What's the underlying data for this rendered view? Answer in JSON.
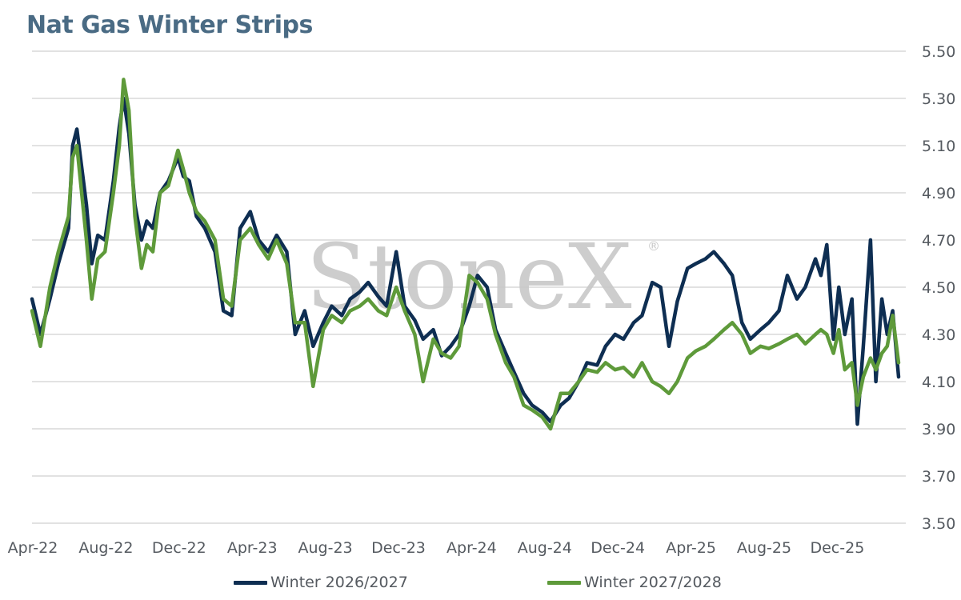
{
  "chart_data": {
    "type": "line",
    "title": "Nat Gas Winter Strips",
    "x_tick_labels": [
      "Apr-22",
      "Aug-22",
      "Dec-22",
      "Apr-23",
      "Aug-23",
      "Dec-23",
      "Apr-24",
      "Aug-24",
      "Dec-24",
      "Apr-25",
      "Aug-25",
      "Dec-25"
    ],
    "y_tick_labels": [
      "3.50",
      "3.70",
      "3.90",
      "4.10",
      "4.30",
      "4.50",
      "4.70",
      "4.90",
      "5.10",
      "5.30",
      "5.50"
    ],
    "ylim": [
      3.5,
      5.5
    ],
    "xlim": [
      "2022-04",
      "2026-04"
    ],
    "grid": true,
    "legend_position": "bottom",
    "watermark": "StoneX",
    "series": [
      {
        "name": "Winter 2026/2027",
        "color": "#0e2e52",
        "x": [
          "2022-04-01",
          "2022-04-15",
          "2022-05-01",
          "2022-05-15",
          "2022-06-01",
          "2022-06-08",
          "2022-06-15",
          "2022-07-01",
          "2022-07-10",
          "2022-07-20",
          "2022-08-01",
          "2022-08-15",
          "2022-08-25",
          "2022-09-01",
          "2022-09-10",
          "2022-09-20",
          "2022-10-01",
          "2022-10-10",
          "2022-10-20",
          "2022-11-01",
          "2022-11-15",
          "2022-12-01",
          "2022-12-10",
          "2022-12-20",
          "2023-01-01",
          "2023-01-15",
          "2023-02-01",
          "2023-02-15",
          "2023-03-01",
          "2023-03-15",
          "2023-04-01",
          "2023-04-15",
          "2023-05-01",
          "2023-05-15",
          "2023-06-01",
          "2023-06-15",
          "2023-07-01",
          "2023-07-15",
          "2023-08-01",
          "2023-08-15",
          "2023-09-01",
          "2023-09-15",
          "2023-10-01",
          "2023-10-15",
          "2023-11-01",
          "2023-11-15",
          "2023-12-01",
          "2023-12-15",
          "2024-01-01",
          "2024-01-15",
          "2024-02-01",
          "2024-02-15",
          "2024-03-01",
          "2024-03-15",
          "2024-04-01",
          "2024-04-15",
          "2024-05-01",
          "2024-05-15",
          "2024-06-01",
          "2024-06-15",
          "2024-07-01",
          "2024-07-15",
          "2024-08-01",
          "2024-08-15",
          "2024-09-01",
          "2024-09-15",
          "2024-10-01",
          "2024-10-15",
          "2024-11-01",
          "2024-11-15",
          "2024-12-01",
          "2024-12-15",
          "2025-01-01",
          "2025-01-15",
          "2025-02-01",
          "2025-02-15",
          "2025-03-01",
          "2025-03-15",
          "2025-04-01",
          "2025-04-15",
          "2025-05-01",
          "2025-05-15",
          "2025-06-01",
          "2025-06-15",
          "2025-07-01",
          "2025-07-15",
          "2025-08-01",
          "2025-08-15",
          "2025-09-01",
          "2025-09-15",
          "2025-10-01",
          "2025-10-15",
          "2025-11-01",
          "2025-11-10",
          "2025-11-20",
          "2025-12-01",
          "2025-12-10",
          "2025-12-20",
          "2026-01-01",
          "2026-01-10",
          "2026-01-20",
          "2026-02-01",
          "2026-02-10",
          "2026-02-20",
          "2026-03-01",
          "2026-03-10",
          "2026-03-20"
        ],
        "values": [
          4.45,
          4.3,
          4.45,
          4.6,
          4.75,
          5.1,
          5.17,
          4.85,
          4.6,
          4.72,
          4.7,
          4.95,
          5.18,
          5.3,
          5.15,
          4.85,
          4.7,
          4.78,
          4.75,
          4.9,
          4.95,
          5.05,
          4.97,
          4.95,
          4.8,
          4.75,
          4.65,
          4.4,
          4.38,
          4.75,
          4.82,
          4.7,
          4.65,
          4.72,
          4.65,
          4.3,
          4.4,
          4.25,
          4.35,
          4.42,
          4.38,
          4.45,
          4.48,
          4.52,
          4.46,
          4.42,
          4.65,
          4.42,
          4.36,
          4.28,
          4.32,
          4.21,
          4.25,
          4.3,
          4.42,
          4.55,
          4.5,
          4.32,
          4.22,
          4.14,
          4.05,
          4.0,
          3.97,
          3.93,
          4.0,
          4.03,
          4.1,
          4.18,
          4.17,
          4.25,
          4.3,
          4.28,
          4.35,
          4.38,
          4.52,
          4.5,
          4.25,
          4.44,
          4.58,
          4.6,
          4.62,
          4.65,
          4.6,
          4.55,
          4.35,
          4.28,
          4.32,
          4.35,
          4.4,
          4.55,
          4.45,
          4.5,
          4.62,
          4.55,
          4.68,
          4.28,
          4.5,
          4.3,
          4.45,
          3.92,
          4.25,
          4.7,
          4.1,
          4.45,
          4.3,
          4.4,
          4.12
        ]
      },
      {
        "name": "Winter 2027/2028",
        "color": "#5e9a3a",
        "x": [
          "2022-04-01",
          "2022-04-15",
          "2022-05-01",
          "2022-05-15",
          "2022-06-01",
          "2022-06-08",
          "2022-06-15",
          "2022-07-01",
          "2022-07-10",
          "2022-07-20",
          "2022-08-01",
          "2022-08-15",
          "2022-08-25",
          "2022-09-01",
          "2022-09-10",
          "2022-09-20",
          "2022-10-01",
          "2022-10-10",
          "2022-10-20",
          "2022-11-01",
          "2022-11-15",
          "2022-12-01",
          "2022-12-10",
          "2022-12-20",
          "2023-01-01",
          "2023-01-15",
          "2023-02-01",
          "2023-02-15",
          "2023-03-01",
          "2023-03-15",
          "2023-04-01",
          "2023-04-15",
          "2023-05-01",
          "2023-05-15",
          "2023-06-01",
          "2023-06-15",
          "2023-07-01",
          "2023-07-15",
          "2023-08-01",
          "2023-08-15",
          "2023-09-01",
          "2023-09-15",
          "2023-10-01",
          "2023-10-15",
          "2023-11-01",
          "2023-11-15",
          "2023-12-01",
          "2023-12-15",
          "2024-01-01",
          "2024-01-15",
          "2024-02-01",
          "2024-02-15",
          "2024-03-01",
          "2024-03-15",
          "2024-04-01",
          "2024-04-15",
          "2024-05-01",
          "2024-05-15",
          "2024-06-01",
          "2024-06-15",
          "2024-07-01",
          "2024-07-15",
          "2024-08-01",
          "2024-08-15",
          "2024-09-01",
          "2024-09-15",
          "2024-10-01",
          "2024-10-15",
          "2024-11-01",
          "2024-11-15",
          "2024-12-01",
          "2024-12-15",
          "2025-01-01",
          "2025-01-15",
          "2025-02-01",
          "2025-02-15",
          "2025-03-01",
          "2025-03-15",
          "2025-04-01",
          "2025-04-15",
          "2025-05-01",
          "2025-05-15",
          "2025-06-01",
          "2025-06-15",
          "2025-07-01",
          "2025-07-15",
          "2025-08-01",
          "2025-08-15",
          "2025-09-01",
          "2025-09-15",
          "2025-10-01",
          "2025-10-15",
          "2025-11-01",
          "2025-11-10",
          "2025-11-20",
          "2025-12-01",
          "2025-12-10",
          "2025-12-20",
          "2026-01-01",
          "2026-01-10",
          "2026-01-20",
          "2026-02-01",
          "2026-02-10",
          "2026-02-20",
          "2026-03-01",
          "2026-03-10",
          "2026-03-20"
        ],
        "values": [
          4.4,
          4.25,
          4.5,
          4.65,
          4.8,
          5.05,
          5.1,
          4.7,
          4.45,
          4.62,
          4.65,
          4.9,
          5.1,
          5.38,
          5.25,
          4.8,
          4.58,
          4.68,
          4.65,
          4.9,
          4.93,
          5.08,
          5.0,
          4.9,
          4.82,
          4.78,
          4.7,
          4.45,
          4.42,
          4.7,
          4.75,
          4.68,
          4.62,
          4.7,
          4.6,
          4.35,
          4.35,
          4.08,
          4.32,
          4.38,
          4.35,
          4.4,
          4.42,
          4.45,
          4.4,
          4.38,
          4.5,
          4.4,
          4.3,
          4.1,
          4.28,
          4.22,
          4.2,
          4.25,
          4.55,
          4.52,
          4.45,
          4.3,
          4.18,
          4.12,
          4.0,
          3.98,
          3.95,
          3.9,
          4.05,
          4.05,
          4.1,
          4.15,
          4.14,
          4.18,
          4.15,
          4.16,
          4.12,
          4.18,
          4.1,
          4.08,
          4.05,
          4.1,
          4.2,
          4.23,
          4.25,
          4.28,
          4.32,
          4.35,
          4.3,
          4.22,
          4.25,
          4.24,
          4.26,
          4.28,
          4.3,
          4.26,
          4.3,
          4.32,
          4.3,
          4.22,
          4.32,
          4.15,
          4.18,
          4.0,
          4.12,
          4.2,
          4.15,
          4.22,
          4.25,
          4.38,
          4.18
        ]
      }
    ]
  }
}
